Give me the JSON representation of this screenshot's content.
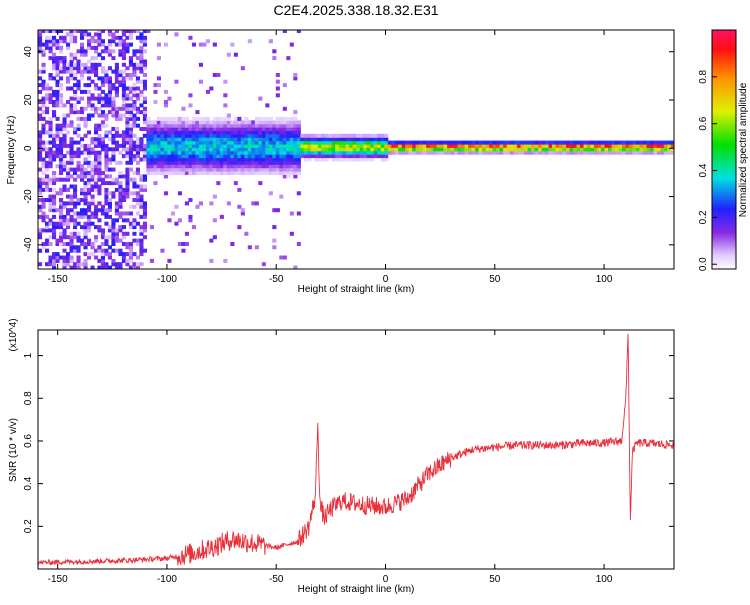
{
  "title": "C2E4.2025.338.18.32.E31",
  "chart_data": [
    {
      "type": "heatmap",
      "xlabel": "Height of straight line (km)",
      "ylabel": "Frequency (Hz)",
      "xlim": [
        -159,
        132
      ],
      "ylim": [
        -50,
        49
      ],
      "xticks": [
        -150,
        -100,
        -50,
        0,
        50,
        100
      ],
      "yticks": [
        -40,
        -20,
        0,
        20,
        40
      ],
      "colorbar": {
        "label": "Normalized spectral amplitude",
        "range": [
          0,
          1
        ],
        "ticks": [
          "0.0",
          "0.2",
          "0.4",
          "0.6",
          "0.8"
        ],
        "colormap": "rainbow (white to violet to blue to cyan to green to yellow to orange to red)"
      },
      "description_regions": [
        {
          "x_range": [
            -159,
            -110
          ],
          "level": 0.2,
          "spread_hz": 49
        },
        {
          "x_range": [
            -110,
            -40
          ],
          "level": 0.4,
          "spread_hz": 10
        },
        {
          "x_range": [
            -40,
            0
          ],
          "level": 0.7,
          "spread_hz": 4
        },
        {
          "x_range": [
            0,
            132
          ],
          "level": 0.95,
          "spread_hz": 2
        }
      ],
      "grid": false
    },
    {
      "type": "line",
      "xlabel": "Height of straight line (km)",
      "ylabel": "SNR (10 * v/v)",
      "y_multiplier": "(x10^4)",
      "xlim": [
        -159,
        132
      ],
      "ylim": [
        0,
        1.12
      ],
      "xticks": [
        -150,
        -100,
        -50,
        0,
        50,
        100
      ],
      "yticks": [
        "0.2",
        "0.4",
        "0.6",
        "0.8",
        "1"
      ],
      "series": [
        {
          "color": "#e8303a",
          "x": [
            -159,
            -140,
            -120,
            -100,
            -90,
            -80,
            -70,
            -60,
            -50,
            -40,
            -35,
            -32,
            -31,
            -30,
            -28,
            -25,
            -20,
            -10,
            0,
            10,
            20,
            30,
            40,
            50,
            60,
            70,
            80,
            90,
            100,
            108,
            110,
            111,
            112,
            113,
            115,
            120,
            132
          ],
          "y": [
            0.03,
            0.035,
            0.04,
            0.05,
            0.07,
            0.1,
            0.14,
            0.12,
            0.1,
            0.13,
            0.2,
            0.35,
            0.7,
            0.3,
            0.24,
            0.28,
            0.32,
            0.3,
            0.29,
            0.33,
            0.45,
            0.52,
            0.56,
            0.57,
            0.58,
            0.58,
            0.58,
            0.59,
            0.59,
            0.6,
            0.8,
            1.12,
            0.22,
            0.55,
            0.59,
            0.59,
            0.58
          ]
        }
      ],
      "grid": false
    }
  ]
}
